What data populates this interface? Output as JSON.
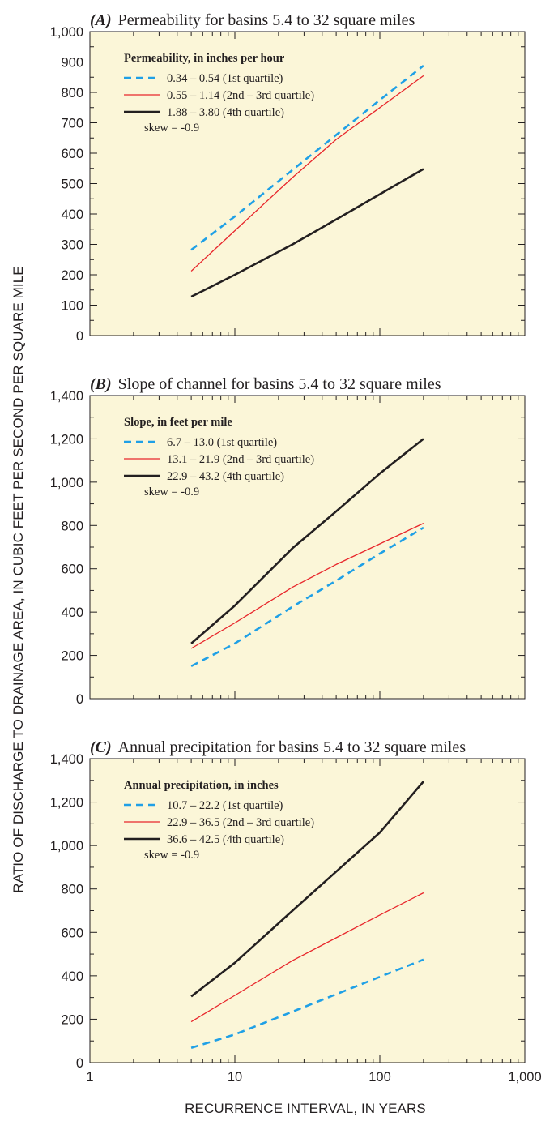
{
  "figure": {
    "ylabel": "RATIO OF DISCHARGE TO DRAINAGE AREA, IN CUBIC FEET PER SECOND PER SQUARE MILE",
    "xlabel": "RECURRENCE INTERVAL, IN YEARS"
  },
  "colors": {
    "plot_background": "#fbf6d8",
    "frame": "#231f20",
    "first_quartile": "#1fa0e6",
    "second_third_quartile": "#e8262b",
    "fourth_quartile": "#231f20"
  },
  "chart_data": [
    {
      "type": "line",
      "panel": "(A)",
      "title": "Permeability for basins 5.4 to 32 square miles",
      "xscale": "log",
      "xlim": [
        1,
        1000
      ],
      "xticks": [
        1,
        10,
        100,
        1000
      ],
      "xtick_labels": [
        "1",
        "10",
        "100",
        "1,000"
      ],
      "show_x_tick_labels": false,
      "ylim": [
        0,
        1000
      ],
      "yticks": [
        0,
        100,
        200,
        300,
        400,
        500,
        600,
        700,
        800,
        900,
        1000
      ],
      "ytick_labels": [
        "0",
        "100",
        "200",
        "300",
        "400",
        "500",
        "600",
        "700",
        "800",
        "900",
        "1,000"
      ],
      "grid": false,
      "legend_position": "top-left",
      "legend_title": "Permeability, in inches per hour",
      "note": "skew = -0.9",
      "x": [
        5,
        10,
        25,
        50,
        100,
        200
      ],
      "series": [
        {
          "name": "0.34 – 0.54 (1st quartile)",
          "style": "dashed",
          "color": "#1fa0e6",
          "values": [
            282,
            392,
            545,
            660,
            775,
            888
          ]
        },
        {
          "name": "0.55 – 1.14 (2nd – 3rd quartile)",
          "style": "solid-thin",
          "color": "#e8262b",
          "values": [
            212,
            345,
            520,
            645,
            750,
            855
          ]
        },
        {
          "name": "1.88 – 3.80 (4th quartile)",
          "style": "solid-thick",
          "color": "#231f20",
          "values": [
            128,
            200,
            300,
            382,
            465,
            548
          ]
        }
      ]
    },
    {
      "type": "line",
      "panel": "(B)",
      "title": "Slope of channel for basins 5.4 to 32 square miles",
      "xscale": "log",
      "xlim": [
        1,
        1000
      ],
      "xticks": [
        1,
        10,
        100,
        1000
      ],
      "xtick_labels": [
        "1",
        "10",
        "100",
        "1,000"
      ],
      "show_x_tick_labels": false,
      "ylim": [
        0,
        1400
      ],
      "yticks": [
        0,
        200,
        400,
        600,
        800,
        1000,
        1200,
        1400
      ],
      "ytick_labels": [
        "0",
        "200",
        "400",
        "600",
        "800",
        "1,000",
        "1,200",
        "1,400"
      ],
      "grid": false,
      "legend_position": "top-left",
      "legend_title": "Slope, in feet per mile",
      "note": "skew = -0.9",
      "x": [
        5,
        10,
        25,
        50,
        100,
        200
      ],
      "series": [
        {
          "name": "6.7 – 13.0 (1st quartile)",
          "style": "dashed",
          "color": "#1fa0e6",
          "values": [
            150,
            255,
            425,
            545,
            670,
            790
          ]
        },
        {
          "name": "13.1 – 21.9 (2nd – 3rd quartile)",
          "style": "solid-thin",
          "color": "#e8262b",
          "values": [
            232,
            350,
            515,
            620,
            715,
            810
          ]
        },
        {
          "name": "22.9 – 43.2 (4th quartile)",
          "style": "solid-thick",
          "color": "#231f20",
          "values": [
            255,
            430,
            695,
            865,
            1040,
            1200
          ]
        }
      ]
    },
    {
      "type": "line",
      "panel": "(C)",
      "title": "Annual precipitation for basins 5.4 to 32 square miles",
      "xscale": "log",
      "xlim": [
        1,
        1000
      ],
      "xticks": [
        1,
        10,
        100,
        1000
      ],
      "xtick_labels": [
        "1",
        "10",
        "100",
        "1,000"
      ],
      "show_x_tick_labels": true,
      "ylim": [
        0,
        1400
      ],
      "yticks": [
        0,
        200,
        400,
        600,
        800,
        1000,
        1200,
        1400
      ],
      "ytick_labels": [
        "0",
        "200",
        "400",
        "600",
        "800",
        "1,000",
        "1,200",
        "1,400"
      ],
      "grid": false,
      "legend_position": "top-left",
      "legend_title": "Annual precipitation, in inches",
      "note": "skew = -0.9",
      "x": [
        5,
        10,
        25,
        50,
        100,
        200
      ],
      "series": [
        {
          "name": "10.7 – 22.2 (1st quartile)",
          "style": "dashed",
          "color": "#1fa0e6",
          "values": [
            68,
            130,
            235,
            315,
            395,
            475
          ]
        },
        {
          "name": "22.9 – 36.5 (2nd – 3rd quartile)",
          "style": "solid-thin",
          "color": "#e8262b",
          "values": [
            188,
            310,
            470,
            575,
            680,
            782
          ]
        },
        {
          "name": "36.6 – 42.5 (4th quartile)",
          "style": "solid-thick",
          "color": "#231f20",
          "values": [
            305,
            460,
            700,
            880,
            1060,
            1295
          ]
        }
      ]
    }
  ]
}
